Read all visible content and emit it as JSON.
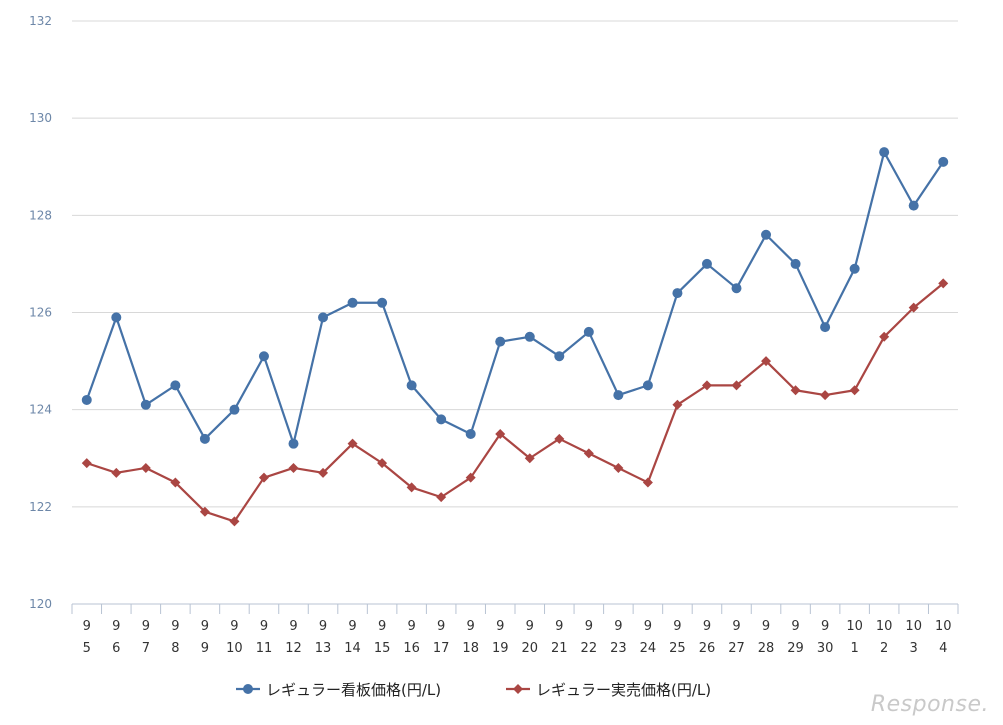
{
  "chart_data": {
    "type": "line",
    "title": "",
    "xlabel": "",
    "ylabel": "",
    "ylim": [
      120,
      132
    ],
    "yticks": [
      120,
      122,
      124,
      126,
      128,
      130,
      132
    ],
    "grid": true,
    "legend_position": "bottom-center",
    "categories": [
      {
        "month": "9",
        "day": "5"
      },
      {
        "month": "9",
        "day": "6"
      },
      {
        "month": "9",
        "day": "7"
      },
      {
        "month": "9",
        "day": "8"
      },
      {
        "month": "9",
        "day": "9"
      },
      {
        "month": "9",
        "day": "10"
      },
      {
        "month": "9",
        "day": "11"
      },
      {
        "month": "9",
        "day": "12"
      },
      {
        "month": "9",
        "day": "13"
      },
      {
        "month": "9",
        "day": "14"
      },
      {
        "month": "9",
        "day": "15"
      },
      {
        "month": "9",
        "day": "16"
      },
      {
        "month": "9",
        "day": "17"
      },
      {
        "month": "9",
        "day": "18"
      },
      {
        "month": "9",
        "day": "19"
      },
      {
        "month": "9",
        "day": "20"
      },
      {
        "month": "9",
        "day": "21"
      },
      {
        "month": "9",
        "day": "22"
      },
      {
        "month": "9",
        "day": "23"
      },
      {
        "month": "9",
        "day": "24"
      },
      {
        "month": "9",
        "day": "25"
      },
      {
        "month": "9",
        "day": "26"
      },
      {
        "month": "9",
        "day": "27"
      },
      {
        "month": "9",
        "day": "28"
      },
      {
        "month": "9",
        "day": "29"
      },
      {
        "month": "9",
        "day": "30"
      },
      {
        "month": "10",
        "day": "1"
      },
      {
        "month": "10",
        "day": "2"
      },
      {
        "month": "10",
        "day": "3"
      },
      {
        "month": "10",
        "day": "4"
      }
    ],
    "series": [
      {
        "name": "レギュラー看板価格(円/L)",
        "color": "#4572a7",
        "marker": "circle",
        "values": [
          124.2,
          125.9,
          124.1,
          124.5,
          123.4,
          124.0,
          125.1,
          123.3,
          125.9,
          126.2,
          126.2,
          124.5,
          123.8,
          123.5,
          125.4,
          125.5,
          125.1,
          125.6,
          124.3,
          124.5,
          126.4,
          127.0,
          126.5,
          127.6,
          127.0,
          125.7,
          126.9,
          129.3,
          128.2,
          129.1
        ]
      },
      {
        "name": "レギュラー実売価格(円/L)",
        "color": "#aa4643",
        "marker": "diamond",
        "values": [
          122.9,
          122.7,
          122.8,
          122.5,
          121.9,
          121.7,
          122.6,
          122.8,
          122.7,
          123.3,
          122.9,
          122.4,
          122.2,
          122.6,
          123.5,
          123.0,
          123.4,
          123.1,
          122.8,
          122.5,
          124.1,
          124.5,
          124.5,
          125.0,
          124.4,
          124.3,
          124.4,
          125.5,
          126.1,
          126.6
        ]
      }
    ]
  },
  "watermark": "Response."
}
